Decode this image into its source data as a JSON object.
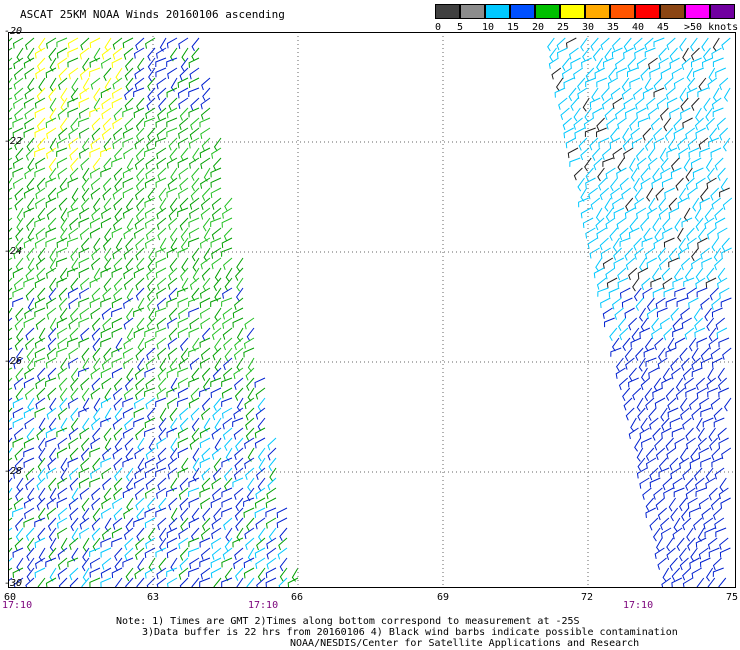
{
  "map": {
    "title": "ASCAT 25KM NOAA Winds 20160106 ascending",
    "legend": {
      "colors": [
        "#404040",
        "#8c8c8c",
        "#00c8ff",
        "#0050ff",
        "#00c000",
        "#ffff00",
        "#ffaa00",
        "#ff5500",
        "#ff0000",
        "#8b4513",
        "#ff00ff",
        "#7000a0"
      ],
      "labels": [
        "0",
        "5",
        "10",
        "15",
        "20",
        "25",
        "30",
        "35",
        "40",
        "45",
        ">50 knots"
      ]
    },
    "lat_labels": [
      "-20",
      "-22",
      "-24",
      "-26",
      "-28",
      "-30"
    ],
    "lon_labels": [
      "60",
      "63",
      "66",
      "69",
      "72",
      "75"
    ],
    "times": [
      "17:10",
      "17:10",
      "17:10"
    ],
    "notes": [
      "Note: 1) Times are GMT 2)Times along bottom correspond to measurement at -25S",
      "3)Data buffer is 22 hrs from 20160106 4) Black wind barbs indicate possible contamination",
      "NOAA/NESDIS/Center for Satellite Applications and Research"
    ]
  }
}
